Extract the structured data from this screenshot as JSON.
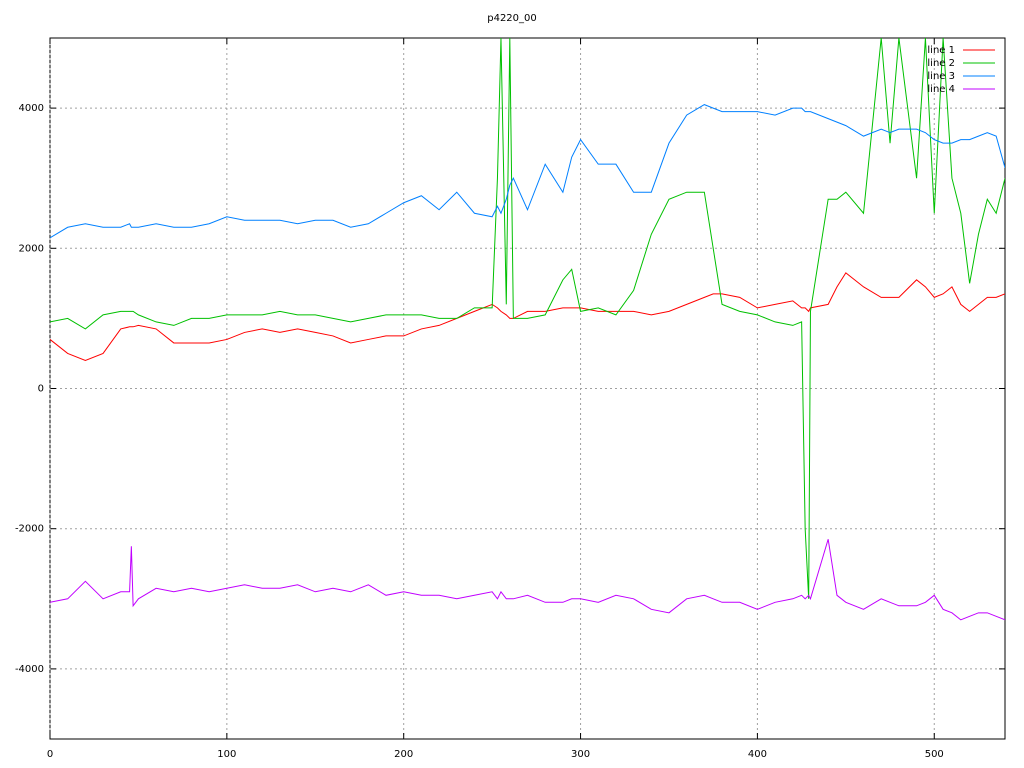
{
  "chart_data": {
    "type": "line",
    "title": "p4220_00",
    "x": [
      0,
      10,
      20,
      30,
      40,
      45,
      46,
      47,
      50,
      60,
      70,
      80,
      90,
      100,
      110,
      120,
      130,
      140,
      150,
      160,
      170,
      180,
      190,
      200,
      210,
      220,
      230,
      240,
      250,
      253,
      255,
      258,
      260,
      262,
      270,
      280,
      290,
      295,
      300,
      310,
      320,
      330,
      340,
      350,
      360,
      370,
      375,
      380,
      390,
      400,
      410,
      420,
      425,
      427,
      429,
      430,
      440,
      445,
      450,
      460,
      470,
      475,
      480,
      490,
      495,
      500,
      505,
      510,
      515,
      520,
      525,
      530,
      535,
      540
    ],
    "series": [
      {
        "name": "line 1",
        "color": "#ff0000",
        "values": [
          700,
          500,
          400,
          500,
          850,
          880,
          880,
          880,
          900,
          850,
          650,
          650,
          650,
          700,
          800,
          850,
          800,
          850,
          800,
          750,
          650,
          700,
          750,
          750,
          850,
          900,
          1000,
          1100,
          1200,
          1150,
          1100,
          1050,
          1000,
          1000,
          1100,
          1100,
          1150,
          1150,
          1150,
          1100,
          1100,
          1100,
          1050,
          1100,
          1200,
          1300,
          1350,
          1350,
          1300,
          1150,
          1200,
          1250,
          1150,
          1150,
          1100,
          1150,
          1200,
          1450,
          1650,
          1450,
          1300,
          1300,
          1300,
          1550,
          1450,
          1300,
          1350,
          1450,
          1200,
          1100,
          1200,
          1300,
          1300,
          1350
        ]
      },
      {
        "name": "line 2",
        "color": "#00c000",
        "values": [
          950,
          1000,
          850,
          1050,
          1100,
          1100,
          1100,
          1100,
          1050,
          950,
          900,
          1000,
          1000,
          1050,
          1050,
          1050,
          1100,
          1050,
          1050,
          1000,
          950,
          1000,
          1050,
          1050,
          1050,
          1000,
          1000,
          1150,
          1150,
          3000,
          5000,
          1200,
          5000,
          1000,
          1000,
          1050,
          1550,
          1700,
          1100,
          1150,
          1050,
          1400,
          2200,
          2700,
          2800,
          2800,
          2000,
          1200,
          1100,
          1050,
          950,
          900,
          950,
          -2000,
          -3000,
          1100,
          2700,
          2700,
          2800,
          2500,
          5000,
          3500,
          5000,
          3000,
          5000,
          2500,
          5000,
          3000,
          2500,
          1500,
          2200,
          2700,
          2500,
          3000
        ]
      },
      {
        "name": "line 3",
        "color": "#0080ff",
        "values": [
          2150,
          2300,
          2350,
          2300,
          2300,
          2350,
          2300,
          2300,
          2300,
          2350,
          2300,
          2300,
          2350,
          2450,
          2400,
          2400,
          2400,
          2350,
          2400,
          2400,
          2300,
          2350,
          2500,
          2650,
          2750,
          2550,
          2800,
          2500,
          2450,
          2600,
          2500,
          2700,
          2900,
          3000,
          2550,
          3200,
          2800,
          3300,
          3550,
          3200,
          3200,
          2800,
          2800,
          3500,
          3900,
          4050,
          4000,
          3950,
          3950,
          3950,
          3900,
          4000,
          4000,
          3950,
          3950,
          3950,
          3850,
          3800,
          3750,
          3600,
          3700,
          3650,
          3700,
          3700,
          3650,
          3550,
          3500,
          3500,
          3550,
          3550,
          3600,
          3650,
          3600,
          3150
        ]
      },
      {
        "name": "line 4",
        "color": "#c000ff",
        "values": [
          -3050,
          -3000,
          -2750,
          -3000,
          -2900,
          -2900,
          -2250,
          -3100,
          -3000,
          -2850,
          -2900,
          -2850,
          -2900,
          -2850,
          -2800,
          -2850,
          -2850,
          -2800,
          -2900,
          -2850,
          -2900,
          -2800,
          -2950,
          -2900,
          -2950,
          -2950,
          -3000,
          -2950,
          -2900,
          -3000,
          -2900,
          -3000,
          -3000,
          -3000,
          -2950,
          -3050,
          -3050,
          -3000,
          -3000,
          -3050,
          -2950,
          -3000,
          -3150,
          -3200,
          -3000,
          -2950,
          -3000,
          -3050,
          -3050,
          -3150,
          -3050,
          -3000,
          -2950,
          -3000,
          -2950,
          -3000,
          -2150,
          -2950,
          -3050,
          -3150,
          -3000,
          -3050,
          -3100,
          -3100,
          -3050,
          -2950,
          -3150,
          -3200,
          -3300,
          -3250,
          -3200,
          -3200,
          -3250,
          -3300
        ]
      }
    ],
    "xlim": [
      0,
      540
    ],
    "ylim": [
      -5000,
      5000
    ],
    "xticks": [
      0,
      100,
      200,
      300,
      400,
      500
    ],
    "yticks": [
      -4000,
      -2000,
      0,
      2000,
      4000
    ],
    "grid": true,
    "legend": "top right"
  }
}
